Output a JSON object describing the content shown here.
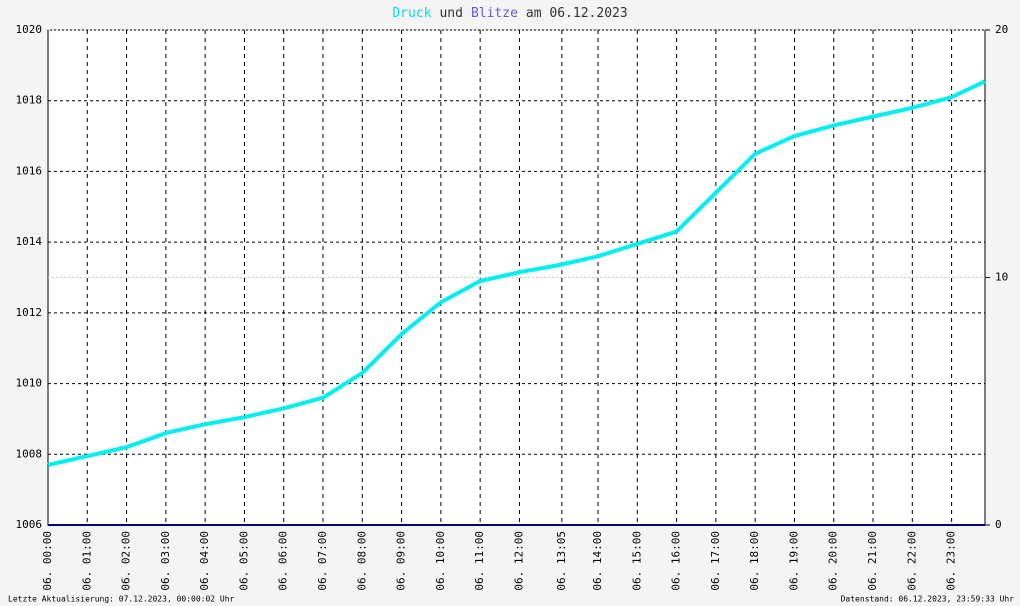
{
  "chart_data": {
    "type": "line",
    "title_parts": [
      {
        "text": "Druck",
        "color": "#00e0e0"
      },
      {
        "text": "und",
        "color": "#333333"
      },
      {
        "text": "Blitze",
        "color": "#6a5acd"
      },
      {
        "text": "am 06.12.2023",
        "color": "#333333"
      }
    ],
    "x": [
      0,
      1,
      2,
      3,
      4,
      5,
      6,
      7,
      8,
      9,
      10,
      11,
      12,
      13,
      14,
      15,
      16,
      17,
      18,
      19,
      20,
      21,
      22,
      23,
      23.85
    ],
    "series": [
      {
        "name": "Druck",
        "color": "#00f0f0",
        "values": [
          1007.7,
          1007.95,
          1008.2,
          1008.6,
          1008.85,
          1009.05,
          1009.3,
          1009.6,
          1010.3,
          1011.4,
          1012.3,
          1012.9,
          1013.15,
          1013.35,
          1013.6,
          1013.95,
          1014.3,
          1015.4,
          1016.5,
          1017.0,
          1017.3,
          1017.55,
          1017.8,
          1018.1,
          1018.55
        ]
      },
      {
        "name": "Blitze",
        "color": "#000080",
        "axis": "y2",
        "values": [
          0,
          0,
          0,
          0,
          0,
          0,
          0,
          0,
          0,
          0,
          0,
          0,
          0,
          0,
          0,
          0,
          0,
          0,
          0,
          0,
          0,
          0,
          0,
          0,
          0
        ]
      }
    ],
    "xlim": [
      0,
      23.85
    ],
    "xticks": [
      {
        "value": 0,
        "label": "06. 00:00"
      },
      {
        "value": 1,
        "label": "06. 01:00"
      },
      {
        "value": 2,
        "label": "06. 02:00"
      },
      {
        "value": 3,
        "label": "06. 03:00"
      },
      {
        "value": 4,
        "label": "06. 04:00"
      },
      {
        "value": 5,
        "label": "06. 05:00"
      },
      {
        "value": 6,
        "label": "06. 06:00"
      },
      {
        "value": 7,
        "label": "06. 07:00"
      },
      {
        "value": 8,
        "label": "06. 08:00"
      },
      {
        "value": 9,
        "label": "06. 09:00"
      },
      {
        "value": 10,
        "label": "06. 10:00"
      },
      {
        "value": 11,
        "label": "06. 11:00"
      },
      {
        "value": 12,
        "label": "06. 12:00"
      },
      {
        "value": 13.08,
        "label": "06. 13:05"
      },
      {
        "value": 14,
        "label": "06. 14:00"
      },
      {
        "value": 15,
        "label": "06. 15:00"
      },
      {
        "value": 16,
        "label": "06. 16:00"
      },
      {
        "value": 17,
        "label": "06. 17:00"
      },
      {
        "value": 18,
        "label": "06. 18:00"
      },
      {
        "value": 19,
        "label": "06. 19:00"
      },
      {
        "value": 20,
        "label": "06. 20:00"
      },
      {
        "value": 21,
        "label": "06. 21:00"
      },
      {
        "value": 22,
        "label": "06. 22:00"
      },
      {
        "value": 23,
        "label": "06. 23:00"
      }
    ],
    "ylim": [
      1006,
      1020
    ],
    "yticks": [
      1006,
      1008,
      1010,
      1012,
      1014,
      1016,
      1018,
      1020
    ],
    "y2lim": [
      0,
      20
    ],
    "y2ticks": [
      0,
      10,
      20
    ],
    "grid": true,
    "footer_left": "Letzte Aktualisierung: 07.12.2023, 00:00:02 Uhr",
    "footer_right": "Datenstand: 06.12.2023, 23:59:33 Uhr"
  }
}
